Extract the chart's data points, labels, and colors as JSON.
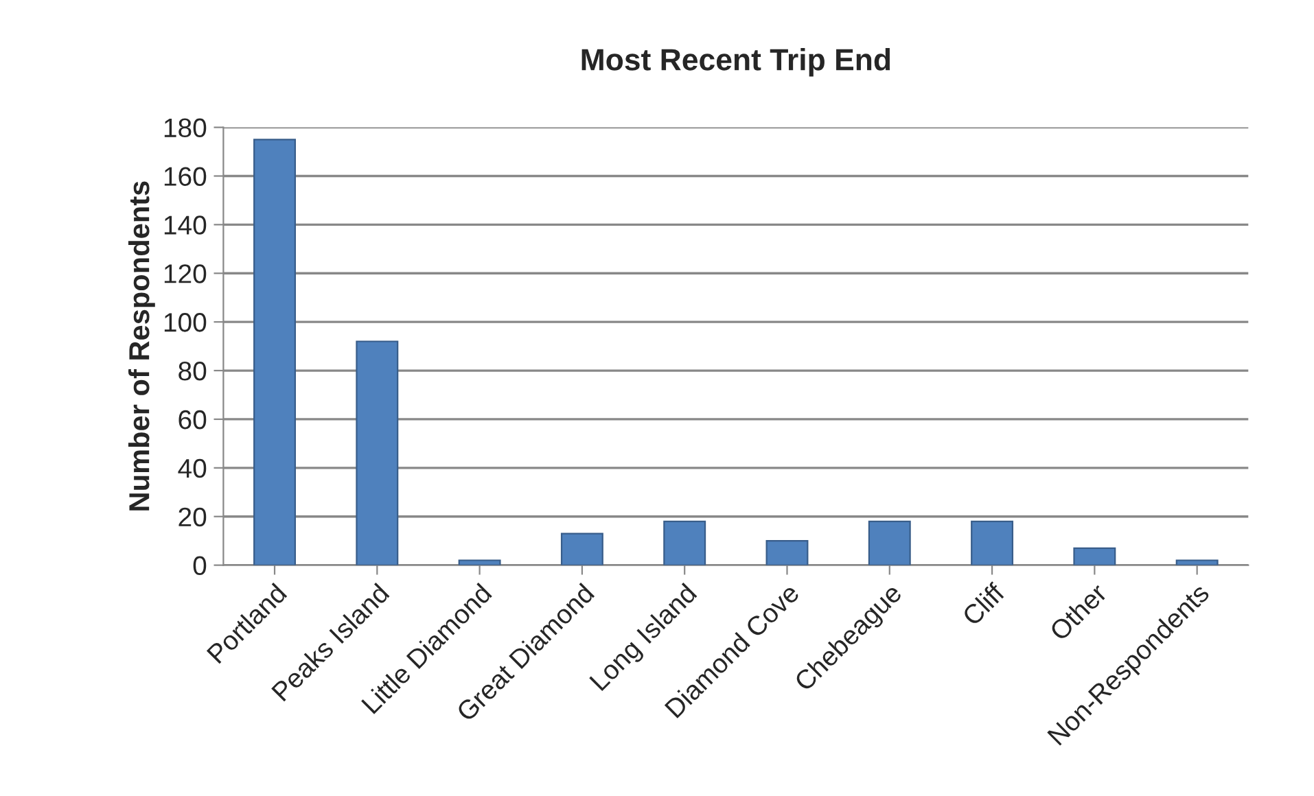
{
  "chart_data": {
    "type": "bar",
    "title": "Most Recent Trip End",
    "ylabel": "Number of Respondents",
    "categories": [
      "Portland",
      "Peaks Island",
      "Little Diamond",
      "Great Diamond",
      "Long Island",
      "Diamond Cove",
      "Chebeague",
      "Cliff",
      "Other",
      "Non-Respondents"
    ],
    "values": [
      175,
      92,
      2,
      13,
      18,
      10,
      18,
      18,
      7,
      2
    ],
    "color": "#4f81bd",
    "ylim": [
      0,
      180
    ],
    "yticks": [
      0,
      20,
      40,
      60,
      80,
      100,
      120,
      140,
      160,
      180
    ],
    "grid": "y"
  }
}
